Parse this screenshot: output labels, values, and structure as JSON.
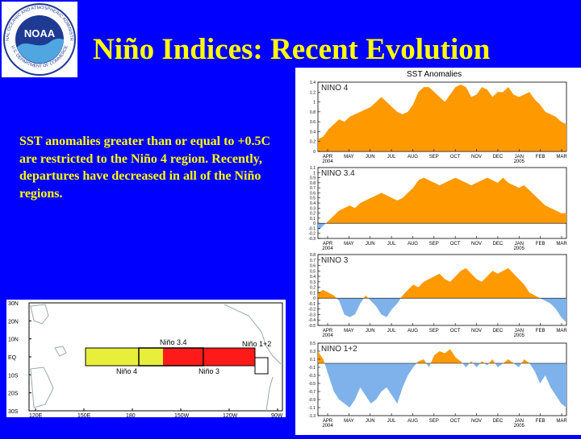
{
  "header": {
    "title": "Niño Indices: Recent Evolution"
  },
  "logo": {
    "name": "NOAA",
    "ring_text_top": "NATIONAL OCEANIC AND ATMOSPHERIC ADMINISTRATION",
    "ring_text_bottom": "U.S. DEPARTMENT OF COMMERCE",
    "color_dark": "#1f3a93",
    "color_light": "#4fa6e0"
  },
  "summary": {
    "text": "SST anomalies greater than or equal to +0.5C are restricted to the Niño 4 region. Recently, departures have decreased in all of the Niño regions."
  },
  "map": {
    "lat_labels": [
      "30N",
      "20N",
      "10N",
      "EQ",
      "10S",
      "20S",
      "30S"
    ],
    "lon_labels": [
      "120E",
      "150E",
      "180",
      "150W",
      "120W",
      "90W"
    ],
    "regions": [
      {
        "label": "Niño 4",
        "color": "#e8ef3a"
      },
      {
        "label": "Niño 3.4",
        "color": "none"
      },
      {
        "label": "Niño 3",
        "color": "#ff1a1a"
      },
      {
        "label": "Niño 1+2",
        "color": "none"
      }
    ]
  },
  "chart_data": [
    {
      "type": "area",
      "label": "NINO 4",
      "ylim": [
        0,
        1.4
      ],
      "yticks": [
        0,
        0.2,
        0.4,
        0.6,
        0.8,
        1,
        1.2,
        1.4
      ],
      "positive_color": "#ff9900",
      "negative_color": "#7fb2ea",
      "x_labels": [
        "APR 2004",
        "MAY",
        "JUN",
        "JUL",
        "AUG",
        "SEP",
        "OCT",
        "NOV",
        "DEC",
        "JAN 2005",
        "FEB",
        "MAR"
      ],
      "values": [
        0.25,
        0.3,
        0.45,
        0.55,
        0.65,
        0.6,
        0.7,
        0.75,
        0.8,
        0.85,
        0.9,
        1.0,
        1.1,
        1.0,
        0.9,
        0.8,
        0.75,
        0.8,
        0.95,
        1.2,
        1.3,
        1.3,
        1.2,
        1.1,
        1.0,
        1.15,
        1.3,
        1.35,
        1.3,
        1.1,
        1.15,
        1.3,
        1.25,
        1.1,
        1.2,
        1.2,
        1.3,
        1.15,
        1.1,
        1.15,
        1.2,
        1.05,
        0.95,
        0.8,
        0.75,
        0.7,
        0.6,
        0.55
      ]
    },
    {
      "type": "area",
      "label": "NINO 3.4",
      "ylim": [
        -0.3,
        1.1
      ],
      "yticks": [
        -0.3,
        -0.2,
        -0.1,
        0,
        0.1,
        0.2,
        0.3,
        0.4,
        0.5,
        0.6,
        0.7,
        0.8,
        0.9,
        1,
        1.1
      ],
      "positive_color": "#ff9900",
      "negative_color": "#7fb2ea",
      "x_labels": [
        "APR 2004",
        "MAY",
        "JUN",
        "JUL",
        "AUG",
        "SEP",
        "OCT",
        "NOV",
        "DEC",
        "JAN 2005",
        "FEB",
        "MAR"
      ],
      "values": [
        -0.15,
        -0.05,
        0.05,
        0.15,
        0.25,
        0.3,
        0.35,
        0.3,
        0.4,
        0.45,
        0.5,
        0.55,
        0.6,
        0.55,
        0.5,
        0.45,
        0.5,
        0.6,
        0.7,
        0.85,
        0.9,
        0.85,
        0.8,
        0.75,
        0.8,
        0.85,
        0.9,
        0.85,
        0.8,
        0.75,
        0.8,
        0.85,
        0.9,
        0.85,
        0.8,
        0.9,
        0.8,
        0.75,
        0.7,
        0.75,
        0.65,
        0.55,
        0.45,
        0.35,
        0.3,
        0.25,
        0.2,
        0.2
      ]
    },
    {
      "type": "area",
      "label": "NINO 3",
      "ylim": [
        -0.5,
        0.8
      ],
      "yticks": [
        -0.5,
        -0.4,
        -0.3,
        -0.2,
        -0.1,
        0,
        0.1,
        0.2,
        0.3,
        0.4,
        0.5,
        0.6,
        0.7,
        0.8
      ],
      "positive_color": "#ff9900",
      "negative_color": "#7fb2ea",
      "x_labels": [
        "APR 2004",
        "MAY",
        "JUN",
        "JUL",
        "AUG",
        "SEP",
        "OCT",
        "NOV",
        "DEC",
        "JAN 2005",
        "FEB",
        "MAR"
      ],
      "values": [
        0.1,
        0.15,
        0.1,
        0.05,
        -0.05,
        -0.3,
        -0.35,
        -0.3,
        -0.1,
        0.05,
        -0.05,
        -0.15,
        -0.3,
        -0.35,
        -0.2,
        -0.1,
        0.05,
        0.15,
        0.25,
        0.2,
        0.3,
        0.35,
        0.4,
        0.45,
        0.35,
        0.3,
        0.4,
        0.5,
        0.55,
        0.45,
        0.35,
        0.3,
        0.4,
        0.5,
        0.45,
        0.5,
        0.55,
        0.45,
        0.35,
        0.25,
        0.1,
        0.05,
        0.0,
        -0.05,
        -0.1,
        -0.2,
        -0.35,
        -0.45
      ]
    },
    {
      "type": "area",
      "label": "NINO 1+2",
      "ylim": [
        -1.3,
        0.5
      ],
      "yticks": [
        -1.3,
        -1.1,
        -0.9,
        -0.7,
        -0.5,
        -0.3,
        -0.1,
        0.1,
        0.3,
        0.5
      ],
      "positive_color": "#ff9900",
      "negative_color": "#7fb2ea",
      "x_labels": [
        "APR 2004",
        "MAY",
        "JUN",
        "JUL",
        "AUG",
        "SEP",
        "OCT",
        "NOV",
        "DEC",
        "JAN 2005",
        "FEB",
        "MAR"
      ],
      "values": [
        0.3,
        0.1,
        -0.3,
        -0.7,
        -0.9,
        -1.0,
        -1.1,
        -0.9,
        -0.6,
        -0.8,
        -1.0,
        -0.9,
        -0.7,
        -0.6,
        -0.8,
        -1.0,
        -0.6,
        -0.3,
        -0.1,
        0.05,
        0.1,
        -0.1,
        0.2,
        0.3,
        0.25,
        0.35,
        0.15,
        0.05,
        -0.1,
        0.05,
        -0.1,
        0.05,
        -0.05,
        0.1,
        -0.1,
        0.0,
        0.1,
        0.0,
        -0.1,
        0.1,
        0.0,
        -0.2,
        -0.5,
        -0.3,
        -0.6,
        -0.8,
        -1.0,
        -1.1
      ]
    }
  ],
  "panel_header": "SST Anomalies"
}
